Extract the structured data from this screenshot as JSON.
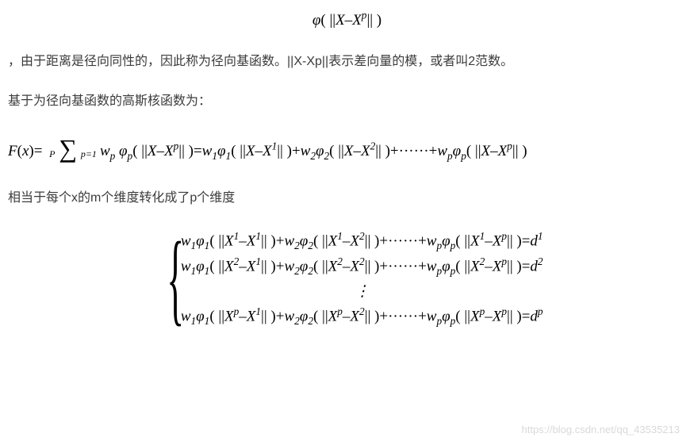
{
  "formula1": {
    "phi": "φ",
    "open": "(",
    "norm_l": "||",
    "x": "X",
    "minus": "–",
    "xp": "X",
    "p_sup": "p",
    "norm_r": "||",
    "close": ")"
  },
  "para1": {
    "text": "，由于距离是径向同性的，因此称为径向基函数。||X-Xp||表示差向量的模，或者叫2范数。"
  },
  "para2": {
    "text": "基于为径向基函数的高斯核函数为："
  },
  "formula2": {
    "lhs": {
      "F": "F",
      "open": "(",
      "x": "x",
      "close": ")",
      "eq": "="
    },
    "sigma": {
      "top": "P",
      "symbol": "∑",
      "bottom": "p=1"
    },
    "w": "w",
    "p_sub": "p",
    "phi": "φ",
    "norm_l": "||",
    "X": "X",
    "minus": "–",
    "norm_r": "||",
    "eq": "=",
    "terms": [
      {
        "w_sub": "1",
        "phi_sub": "1",
        "sup": "1"
      },
      {
        "w_sub": "2",
        "phi_sub": "2",
        "sup": "2"
      }
    ],
    "plus": "+",
    "ellipsis": "······",
    "last": {
      "w_sub": "p",
      "phi_sub": "p",
      "sup": "p"
    }
  },
  "para3": {
    "text": "相当于每个x的m个维度转化成了p个维度"
  },
  "system": {
    "rows": [
      {
        "row_sup": "1",
        "r_sup": "1"
      },
      {
        "row_sup": "2",
        "r_sup": "2"
      }
    ],
    "last": {
      "row_sup": "p",
      "r_sup": "p"
    },
    "w": "w",
    "phi": "φ",
    "X": "X",
    "minus": "–",
    "norm_l": "||",
    "norm_r": "||",
    "plus": "+",
    "ellipsis": "······",
    "eq": "=",
    "d": "d",
    "sub1": "1",
    "sub2": "2",
    "subp": "p",
    "sup1": "1",
    "sup2": "2",
    "supp": "p",
    "vdots": "⋮"
  },
  "watermark": "https://blog.csdn.net/qq_43535213"
}
